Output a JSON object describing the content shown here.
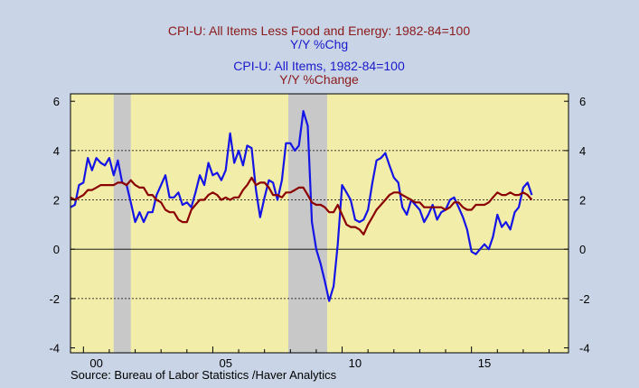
{
  "chart_data": {
    "type": "line",
    "titles": [
      {
        "text": "CPI-U: All Items Less Food and Energy: 1982-84=100",
        "color": "#8b1a1a"
      },
      {
        "text": "Y/Y %Chg",
        "color": "#1a1acc"
      },
      {
        "text": "CPI-U: All Items, 1982-84=100",
        "color": "#1a1acc"
      },
      {
        "text": "Y/Y %Change",
        "color": "#8b1a1a"
      }
    ],
    "source": "Source:  Bureau of Labor Statistics /Haver Analytics",
    "xlim": [
      1999.5,
      2018.75
    ],
    "ylim": [
      -4.2,
      6.3
    ],
    "y_ticks": [
      "-4",
      "-2",
      "0",
      "2",
      "4",
      "6"
    ],
    "x_tick_labels": [
      {
        "year": 2000,
        "label": "00"
      },
      {
        "year": 2005,
        "label": "05"
      },
      {
        "year": 2010,
        "label": "10"
      },
      {
        "year": 2015,
        "label": "15"
      }
    ],
    "dashed_gridlines": [
      -2,
      2,
      4
    ],
    "solid_gridlines": [
      0
    ],
    "recessions": [
      [
        2001.17,
        2001.83
      ],
      [
        2007.92,
        2009.42
      ]
    ],
    "colors": {
      "plot_bg": "#f2eeaa",
      "outer_bg": "#c9d4e6",
      "recession": "#c8c8c8",
      "headline": "#1414e6",
      "core": "#8b0000"
    },
    "series": [
      {
        "name": "CPI-U: All Items",
        "color": "#1414e6",
        "points": [
          [
            1999.5,
            1.7
          ],
          [
            1999.67,
            1.8
          ],
          [
            1999.83,
            2.6
          ],
          [
            2000.0,
            2.7
          ],
          [
            2000.17,
            3.7
          ],
          [
            2000.33,
            3.2
          ],
          [
            2000.5,
            3.7
          ],
          [
            2000.67,
            3.5
          ],
          [
            2000.83,
            3.4
          ],
          [
            2001.0,
            3.7
          ],
          [
            2001.17,
            3.0
          ],
          [
            2001.33,
            3.6
          ],
          [
            2001.5,
            2.7
          ],
          [
            2001.67,
            2.6
          ],
          [
            2001.83,
            1.9
          ],
          [
            2002.0,
            1.1
          ],
          [
            2002.17,
            1.5
          ],
          [
            2002.33,
            1.1
          ],
          [
            2002.5,
            1.5
          ],
          [
            2002.67,
            1.5
          ],
          [
            2002.83,
            2.2
          ],
          [
            2003.0,
            2.6
          ],
          [
            2003.17,
            3.0
          ],
          [
            2003.33,
            2.1
          ],
          [
            2003.5,
            2.1
          ],
          [
            2003.67,
            2.3
          ],
          [
            2003.83,
            1.8
          ],
          [
            2004.0,
            1.9
          ],
          [
            2004.17,
            1.7
          ],
          [
            2004.33,
            2.3
          ],
          [
            2004.5,
            3.0
          ],
          [
            2004.67,
            2.6
          ],
          [
            2004.83,
            3.5
          ],
          [
            2005.0,
            3.0
          ],
          [
            2005.17,
            3.1
          ],
          [
            2005.33,
            2.8
          ],
          [
            2005.5,
            3.2
          ],
          [
            2005.67,
            4.7
          ],
          [
            2005.83,
            3.5
          ],
          [
            2006.0,
            4.0
          ],
          [
            2006.17,
            3.4
          ],
          [
            2006.33,
            4.2
          ],
          [
            2006.5,
            4.1
          ],
          [
            2006.67,
            2.4
          ],
          [
            2006.83,
            1.3
          ],
          [
            2007.0,
            2.1
          ],
          [
            2007.17,
            2.8
          ],
          [
            2007.33,
            2.7
          ],
          [
            2007.5,
            2.0
          ],
          [
            2007.67,
            2.8
          ],
          [
            2007.83,
            4.3
          ],
          [
            2008.0,
            4.3
          ],
          [
            2008.17,
            4.0
          ],
          [
            2008.33,
            4.2
          ],
          [
            2008.5,
            5.6
          ],
          [
            2008.67,
            5.0
          ],
          [
            2008.83,
            1.1
          ],
          [
            2009.0,
            0.0
          ],
          [
            2009.17,
            -0.6
          ],
          [
            2009.33,
            -1.3
          ],
          [
            2009.5,
            -2.1
          ],
          [
            2009.67,
            -1.5
          ],
          [
            2009.83,
            0.2
          ],
          [
            2010.0,
            2.6
          ],
          [
            2010.17,
            2.3
          ],
          [
            2010.33,
            2.0
          ],
          [
            2010.5,
            1.2
          ],
          [
            2010.67,
            1.1
          ],
          [
            2010.83,
            1.2
          ],
          [
            2011.0,
            1.6
          ],
          [
            2011.17,
            2.7
          ],
          [
            2011.33,
            3.6
          ],
          [
            2011.5,
            3.7
          ],
          [
            2011.67,
            3.9
          ],
          [
            2011.83,
            3.4
          ],
          [
            2012.0,
            2.9
          ],
          [
            2012.17,
            2.7
          ],
          [
            2012.33,
            1.7
          ],
          [
            2012.5,
            1.4
          ],
          [
            2012.67,
            2.0
          ],
          [
            2012.83,
            1.8
          ],
          [
            2013.0,
            1.6
          ],
          [
            2013.17,
            1.1
          ],
          [
            2013.33,
            1.4
          ],
          [
            2013.5,
            1.8
          ],
          [
            2013.67,
            1.2
          ],
          [
            2013.83,
            1.5
          ],
          [
            2014.0,
            1.6
          ],
          [
            2014.17,
            2.0
          ],
          [
            2014.33,
            2.1
          ],
          [
            2014.5,
            1.7
          ],
          [
            2014.67,
            1.3
          ],
          [
            2014.83,
            0.8
          ],
          [
            2015.0,
            -0.1
          ],
          [
            2015.17,
            -0.2
          ],
          [
            2015.33,
            0.0
          ],
          [
            2015.5,
            0.2
          ],
          [
            2015.67,
            0.0
          ],
          [
            2015.83,
            0.5
          ],
          [
            2016.0,
            1.4
          ],
          [
            2016.17,
            0.9
          ],
          [
            2016.33,
            1.1
          ],
          [
            2016.5,
            0.8
          ],
          [
            2016.67,
            1.5
          ],
          [
            2016.83,
            1.7
          ],
          [
            2017.0,
            2.5
          ],
          [
            2017.17,
            2.7
          ],
          [
            2017.33,
            2.2
          ]
        ]
      },
      {
        "name": "CPI-U: All Items Less Food and Energy",
        "color": "#8b0000",
        "points": [
          [
            1999.5,
            2.1
          ],
          [
            1999.67,
            2.0
          ],
          [
            1999.83,
            2.1
          ],
          [
            2000.0,
            2.2
          ],
          [
            2000.17,
            2.4
          ],
          [
            2000.33,
            2.4
          ],
          [
            2000.5,
            2.5
          ],
          [
            2000.67,
            2.6
          ],
          [
            2000.83,
            2.6
          ],
          [
            2001.0,
            2.6
          ],
          [
            2001.17,
            2.6
          ],
          [
            2001.33,
            2.7
          ],
          [
            2001.5,
            2.7
          ],
          [
            2001.67,
            2.6
          ],
          [
            2001.83,
            2.8
          ],
          [
            2002.0,
            2.6
          ],
          [
            2002.17,
            2.5
          ],
          [
            2002.33,
            2.5
          ],
          [
            2002.5,
            2.2
          ],
          [
            2002.67,
            2.2
          ],
          [
            2002.83,
            2.0
          ],
          [
            2003.0,
            1.9
          ],
          [
            2003.17,
            1.6
          ],
          [
            2003.33,
            1.5
          ],
          [
            2003.5,
            1.5
          ],
          [
            2003.67,
            1.2
          ],
          [
            2003.83,
            1.1
          ],
          [
            2004.0,
            1.1
          ],
          [
            2004.17,
            1.6
          ],
          [
            2004.33,
            1.8
          ],
          [
            2004.5,
            2.0
          ],
          [
            2004.67,
            2.0
          ],
          [
            2004.83,
            2.2
          ],
          [
            2005.0,
            2.3
          ],
          [
            2005.17,
            2.2
          ],
          [
            2005.33,
            2.0
          ],
          [
            2005.5,
            2.1
          ],
          [
            2005.67,
            2.0
          ],
          [
            2005.83,
            2.1
          ],
          [
            2006.0,
            2.1
          ],
          [
            2006.17,
            2.4
          ],
          [
            2006.33,
            2.6
          ],
          [
            2006.5,
            2.9
          ],
          [
            2006.67,
            2.6
          ],
          [
            2006.83,
            2.7
          ],
          [
            2007.0,
            2.7
          ],
          [
            2007.17,
            2.5
          ],
          [
            2007.33,
            2.2
          ],
          [
            2007.5,
            2.2
          ],
          [
            2007.67,
            2.1
          ],
          [
            2007.83,
            2.3
          ],
          [
            2008.0,
            2.3
          ],
          [
            2008.17,
            2.4
          ],
          [
            2008.33,
            2.5
          ],
          [
            2008.5,
            2.5
          ],
          [
            2008.67,
            2.2
          ],
          [
            2008.83,
            1.9
          ],
          [
            2009.0,
            1.8
          ],
          [
            2009.17,
            1.8
          ],
          [
            2009.33,
            1.7
          ],
          [
            2009.5,
            1.5
          ],
          [
            2009.67,
            1.5
          ],
          [
            2009.83,
            1.8
          ],
          [
            2010.0,
            1.4
          ],
          [
            2010.17,
            1.0
          ],
          [
            2010.33,
            0.9
          ],
          [
            2010.5,
            0.9
          ],
          [
            2010.67,
            0.8
          ],
          [
            2010.83,
            0.6
          ],
          [
            2011.0,
            1.0
          ],
          [
            2011.17,
            1.3
          ],
          [
            2011.33,
            1.6
          ],
          [
            2011.5,
            1.8
          ],
          [
            2011.67,
            2.0
          ],
          [
            2011.83,
            2.2
          ],
          [
            2012.0,
            2.3
          ],
          [
            2012.17,
            2.3
          ],
          [
            2012.33,
            2.2
          ],
          [
            2012.5,
            2.1
          ],
          [
            2012.67,
            2.0
          ],
          [
            2012.83,
            1.9
          ],
          [
            2013.0,
            1.9
          ],
          [
            2013.17,
            1.7
          ],
          [
            2013.33,
            1.7
          ],
          [
            2013.5,
            1.7
          ],
          [
            2013.67,
            1.7
          ],
          [
            2013.83,
            1.7
          ],
          [
            2014.0,
            1.6
          ],
          [
            2014.17,
            1.7
          ],
          [
            2014.33,
            1.9
          ],
          [
            2014.5,
            1.9
          ],
          [
            2014.67,
            1.7
          ],
          [
            2014.83,
            1.6
          ],
          [
            2015.0,
            1.6
          ],
          [
            2015.17,
            1.8
          ],
          [
            2015.33,
            1.8
          ],
          [
            2015.5,
            1.8
          ],
          [
            2015.67,
            1.9
          ],
          [
            2015.83,
            2.1
          ],
          [
            2016.0,
            2.3
          ],
          [
            2016.17,
            2.2
          ],
          [
            2016.33,
            2.2
          ],
          [
            2016.5,
            2.3
          ],
          [
            2016.67,
            2.2
          ],
          [
            2016.83,
            2.2
          ],
          [
            2017.0,
            2.3
          ],
          [
            2017.17,
            2.2
          ],
          [
            2017.33,
            2.0
          ]
        ]
      }
    ]
  }
}
